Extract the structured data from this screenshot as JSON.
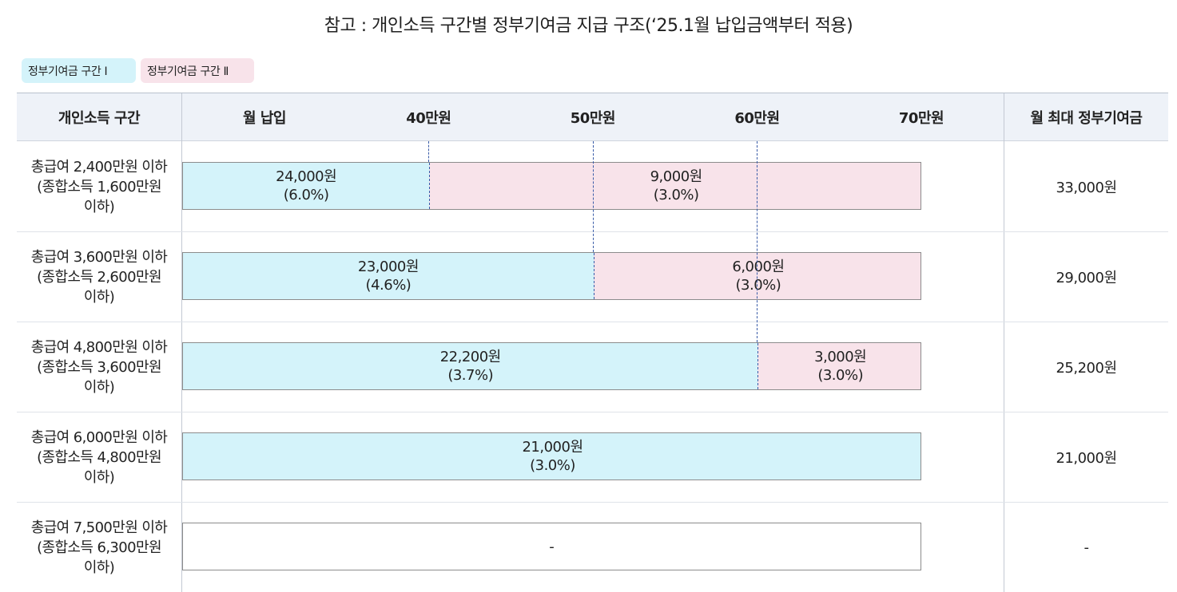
{
  "title": "참고 : 개인소득 구간별 정부기여금 지급 구조(‘25.1월 납입금액부터 적용)",
  "legend": [
    {
      "label": "정부기여금 구간 Ⅰ",
      "color": "#d4f3fa"
    },
    {
      "label": "정부기여금 구간 Ⅱ",
      "color": "#f8e3ea"
    }
  ],
  "header": {
    "col_income": "개인소득 구간",
    "col_monthly": "월 납입",
    "tick_labels": [
      "40만원",
      "50만원",
      "60만원",
      "70만원"
    ],
    "col_max": "월 최대 정부기여금"
  },
  "scale": {
    "min": 25,
    "max": 70,
    "ticks": [
      40,
      50,
      60,
      70
    ],
    "unit": "만원"
  },
  "rows": [
    {
      "label_lines": [
        "총급여 2,400만원 이하",
        "(종합소득 1,600만원",
        "이하)"
      ],
      "segments": [
        {
          "band": 0,
          "end": 40,
          "amount": "24,000원",
          "rate": "(6.0%)"
        },
        {
          "band": 1,
          "end": 70,
          "amount": "9,000원",
          "rate": "(3.0%)"
        }
      ],
      "max_contribution": "33,000원"
    },
    {
      "label_lines": [
        "총급여 3,600만원 이하",
        "(종합소득 2,600만원",
        "이하)"
      ],
      "segments": [
        {
          "band": 0,
          "end": 50,
          "amount": "23,000원",
          "rate": "(4.6%)"
        },
        {
          "band": 1,
          "end": 70,
          "amount": "6,000원",
          "rate": "(3.0%)"
        }
      ],
      "max_contribution": "29,000원"
    },
    {
      "label_lines": [
        "총급여 4,800만원 이하",
        "(종합소득 3,600만원",
        "이하)"
      ],
      "segments": [
        {
          "band": 0,
          "end": 60,
          "amount": "22,200원",
          "rate": "(3.7%)"
        },
        {
          "band": 1,
          "end": 70,
          "amount": "3,000원",
          "rate": "(3.0%)"
        }
      ],
      "max_contribution": "25,200원"
    },
    {
      "label_lines": [
        "총급여 6,000만원 이하",
        "(종합소득 4,800만원",
        "이하)"
      ],
      "segments": [
        {
          "band": 0,
          "end": 70,
          "amount": "21,000원",
          "rate": "(3.0%)"
        }
      ],
      "max_contribution": "21,000원"
    },
    {
      "label_lines": [
        "총급여 7,500만원 이하",
        "(종합소득 6,300만원",
        "이하)"
      ],
      "segments": [],
      "empty_text": "-",
      "max_contribution": "-"
    }
  ]
}
